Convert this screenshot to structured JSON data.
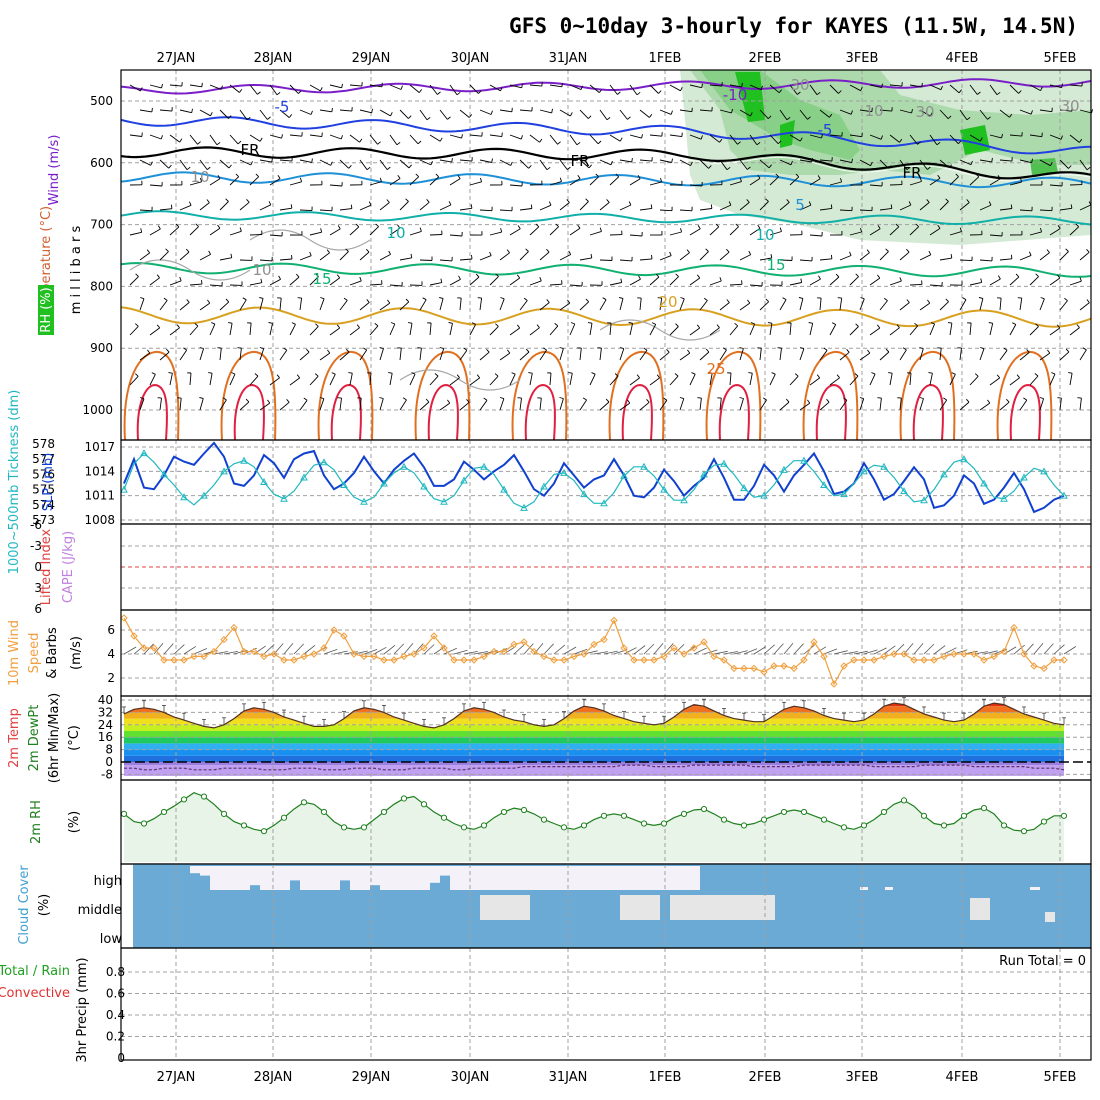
{
  "title": "GFS 0~10day 3-hourly for KAYES (11.5W, 14.5N)",
  "colors": {
    "frame": "#000000",
    "grid": "#a0a0a0",
    "barb": "#000000",
    "t_minus10": "#7a1fc8",
    "t_minus5": "#2040e0",
    "t_fr": "#000000",
    "t_5": "#1e90d8",
    "t_10": "#10b0a8",
    "t_15": "#10b070",
    "t_20": "#d8a020",
    "t_25": "#e07020",
    "t_30": "#e02040",
    "rh_light": "#d0e8d0",
    "rh_mid": "#88d088",
    "rh_dark": "#20c020",
    "slp": "#1040d0",
    "thick": "#20b8c0",
    "lifted": "#e04040",
    "wind10m": "#f0a040",
    "rh2m": "#208020",
    "rh2m_fill": "#e8f4e8",
    "cloud": "#6aaad4",
    "cloud_clear": "#f4f2f8",
    "cloud_gray": "#e6e6e6",
    "precip_total": "#20a020",
    "precip_conv": "#e03030"
  },
  "x_axis": {
    "dates": [
      "27JAN",
      "28JAN",
      "29JAN",
      "30JAN",
      "31JAN",
      "1FEB",
      "2FEB",
      "3FEB",
      "4FEB",
      "5FEB"
    ]
  },
  "panels": {
    "upper": {
      "ylabel_wind": "Wind (m/s)",
      "ylabel_temp": "Temperature (°C)",
      "ylabel_rh": "RH (%)",
      "ylabel_p": "m i l l i b a r s",
      "ticks": [
        "500",
        "600",
        "700",
        "800",
        "900",
        "1000"
      ],
      "contour_labels": [
        "-10",
        "-5",
        "-5",
        "-5",
        "FR",
        "FR",
        "FR",
        "10",
        "5",
        "5",
        "10",
        "10",
        "15",
        "15",
        "20",
        "25",
        "10",
        "10",
        "30",
        "30",
        "30"
      ]
    },
    "slp": {
      "ylabel_thick": "1000~500mb Tickness (dm)",
      "ylabel_slp": "SLP (mb)",
      "ticks_left": [
        "578",
        "577",
        "576",
        "575",
        "574",
        "573"
      ],
      "ticks_right": [
        "1017",
        "1014",
        "1011",
        "1008"
      ]
    },
    "cape": {
      "ylabel_li": "Lifted Index",
      "ylabel_cape": "CAPE (J/kg)",
      "ticks": [
        "-6",
        "-3",
        "0",
        "3",
        "6"
      ]
    },
    "wind10m": {
      "ylabel_a": "10m Wind",
      "ylabel_b": "Speed",
      "ylabel_c": "& Barbs",
      "ylabel_unit": "(m/s)",
      "ticks": [
        "6",
        "4",
        "2"
      ]
    },
    "temp2m": {
      "ylabel_a": "2m Temp",
      "ylabel_b": "2m DewPt",
      "ylabel_c": "(6hr Min/Max)",
      "ylabel_unit": "(°C)",
      "ticks": [
        "40",
        "32",
        "24",
        "16",
        "8",
        "0",
        "-8"
      ]
    },
    "rh2m": {
      "ylabel": "2m RH",
      "ylabel_unit": "(%)"
    },
    "cloud": {
      "ylabel": "Cloud Cover",
      "ylabel_unit": "(%)",
      "ticks": [
        "high",
        "middle",
        "low"
      ]
    },
    "precip": {
      "ylabel_a": "Total / Rain",
      "ylabel_b": "Convective",
      "ylabel_c": "3hr Precip (mm)",
      "ticks": [
        "0.8",
        "0.6",
        "0.4",
        "0.2",
        "0"
      ],
      "run_total": "Run Total = 0"
    }
  },
  "chart_data": {
    "type": "meteogram",
    "title": "GFS 0~10day 3-hourly for KAYES (11.5W, 14.5N)",
    "start_index_time": "26JAN 15Z",
    "step_hours": 3,
    "days": [
      "27JAN",
      "28JAN",
      "29JAN",
      "30JAN",
      "31JAN",
      "1FEB",
      "2FEB",
      "3FEB",
      "4FEB",
      "5FEB"
    ],
    "pressure_levels_mb": [
      500,
      600,
      700,
      800,
      900,
      1000
    ],
    "slp_mb": [
      1012.5,
      1015.5,
      1012.0,
      1011.8,
      1013.5,
      1015.8,
      1015.2,
      1014.8,
      1016.2,
      1017.5,
      1015.8,
      1012.5,
      1012.2,
      1013.5,
      1016.0,
      1015.0,
      1013.2,
      1015.5,
      1016.2,
      1016.5,
      1013.5,
      1011.8,
      1012.5,
      1013.8,
      1015.8,
      1014.0,
      1012.5,
      1014.2,
      1015.3,
      1016.2,
      1014.5,
      1012.2,
      1012.2,
      1013.0,
      1015.2,
      1014.2,
      1013.0,
      1014.0,
      1014.8,
      1016.0,
      1014.0,
      1011.8,
      1011.0,
      1012.5,
      1015.0,
      1013.5,
      1012.0,
      1013.0,
      1013.5,
      1015.5,
      1013.5,
      1011.0,
      1010.8,
      1012.0,
      1014.2,
      1012.8,
      1011.0,
      1012.2,
      1013.2,
      1015.5,
      1013.2,
      1010.5,
      1010.5,
      1012.2,
      1014.8,
      1013.5,
      1011.5,
      1013.5,
      1014.8,
      1016.2,
      1014.0,
      1011.2,
      1011.5,
      1012.5,
      1015.0,
      1013.0,
      1010.5,
      1011.2,
      1012.8,
      1014.5,
      1013.0,
      1009.5,
      1009.8,
      1011.0,
      1013.5,
      1012.5,
      1010.0,
      1010.5,
      1012.0,
      1013.8,
      1011.8,
      1009.0,
      1009.5,
      1010.5,
      1011.0
    ],
    "thickness_dm": [
      575.0,
      576.7,
      577.4,
      576.8,
      576.0,
      575.3,
      574.5,
      574.0,
      574.6,
      575.3,
      576.2,
      576.7,
      576.9,
      576.5,
      575.5,
      574.7,
      574.4,
      574.9,
      575.8,
      576.6,
      576.8,
      576.3,
      575.3,
      574.5,
      574.2,
      574.5,
      575.4,
      576.1,
      576.5,
      576.1,
      575.2,
      574.4,
      574.2,
      574.6,
      575.6,
      576.4,
      576.5,
      576.0,
      575.0,
      574.1,
      573.8,
      574.2,
      575.2,
      576.0,
      576.1,
      575.6,
      574.7,
      574.1,
      574.1,
      574.8,
      575.9,
      576.5,
      576.5,
      575.9,
      575.0,
      574.3,
      574.3,
      575.0,
      576.0,
      576.6,
      576.7,
      576.0,
      575.1,
      574.5,
      574.6,
      575.3,
      576.3,
      576.9,
      576.9,
      576.2,
      575.3,
      574.6,
      574.7,
      575.4,
      576.2,
      576.6,
      576.5,
      575.8,
      574.9,
      574.2,
      574.3,
      575.0,
      576.0,
      576.8,
      577.0,
      576.4,
      575.4,
      574.5,
      574.4,
      574.9,
      575.8,
      576.4,
      576.2,
      575.3,
      574.6
    ],
    "lifted_index": [
      0,
      0,
      0,
      0,
      0,
      0,
      0,
      0,
      0,
      0,
      0,
      0,
      0,
      0,
      0,
      0,
      0,
      0,
      0,
      0,
      0,
      0,
      0,
      0,
      0,
      0,
      0,
      0,
      0,
      0,
      0,
      0,
      0,
      0,
      0,
      0,
      0,
      0,
      0,
      0,
      0,
      0,
      0,
      0,
      0,
      0,
      0,
      0,
      0,
      0,
      0,
      0,
      0,
      0,
      0,
      0,
      0,
      0,
      0,
      0,
      0,
      0,
      0,
      0,
      0,
      0,
      0,
      0,
      0,
      0,
      0,
      0,
      0,
      0,
      0,
      0,
      0,
      0,
      0,
      0,
      0,
      0,
      0,
      0,
      0,
      0,
      0,
      0,
      0,
      0,
      0,
      0,
      0,
      0,
      0
    ],
    "wind10m_ms": [
      7.0,
      5.5,
      4.5,
      4.5,
      3.5,
      3.5,
      3.5,
      3.8,
      3.8,
      4.2,
      5.2,
      6.2,
      4.2,
      4.2,
      3.8,
      4.0,
      3.5,
      3.5,
      3.8,
      4.0,
      4.5,
      6.0,
      5.5,
      4.0,
      3.8,
      3.8,
      3.5,
      3.5,
      3.8,
      4.0,
      4.5,
      5.5,
      4.5,
      3.5,
      3.5,
      3.5,
      3.8,
      4.2,
      4.2,
      4.8,
      5.0,
      4.2,
      3.8,
      3.5,
      3.5,
      3.8,
      4.0,
      4.8,
      5.2,
      6.8,
      4.5,
      3.5,
      3.5,
      3.5,
      3.8,
      4.5,
      4.0,
      4.5,
      5.0,
      3.8,
      3.5,
      2.8,
      2.8,
      2.8,
      2.5,
      3.0,
      3.0,
      2.8,
      3.5,
      5.0,
      3.8,
      1.5,
      3.0,
      3.5,
      3.5,
      3.5,
      3.8,
      4.0,
      4.0,
      3.5,
      3.5,
      3.5,
      3.8,
      4.0,
      4.0,
      4.0,
      3.5,
      3.8,
      4.2,
      6.2,
      4.0,
      3.0,
      2.8,
      3.5,
      3.5
    ],
    "temp2m_c": [
      31,
      34,
      35,
      34,
      32,
      29,
      27,
      25,
      23,
      22,
      24,
      28,
      33,
      35,
      34,
      32,
      29,
      27,
      25,
      23,
      23,
      24,
      28,
      33,
      35,
      34,
      32,
      29,
      27,
      25,
      23,
      22,
      24,
      28,
      33,
      35,
      34,
      32,
      29,
      27,
      26,
      24,
      23,
      24,
      28,
      33,
      36,
      35,
      33,
      30,
      28,
      26,
      25,
      24,
      25,
      29,
      34,
      37,
      36,
      33,
      30,
      28,
      27,
      26,
      26,
      30,
      34,
      36,
      35,
      33,
      30,
      28,
      27,
      26,
      27,
      31,
      36,
      38,
      37,
      34,
      31,
      29,
      27,
      26,
      27,
      31,
      36,
      38,
      37,
      34,
      31,
      29,
      27,
      25,
      24
    ],
    "dewpt2m_c": [
      -4,
      -4,
      -5,
      -5,
      -4,
      -4,
      -4,
      -5,
      -5,
      -5,
      -4,
      -4,
      -4,
      -4,
      -5,
      -5,
      -5,
      -4,
      -4,
      -4,
      -5,
      -5,
      -5,
      -4,
      -4,
      -4,
      -5,
      -5,
      -5,
      -4,
      -4,
      -4,
      -4,
      -5,
      -5,
      -4,
      -4,
      -4,
      -4,
      -4,
      -3,
      -3,
      -3,
      -3,
      -3,
      -3,
      -3,
      -3,
      -3,
      -3,
      -2,
      -2,
      -2,
      -3,
      -3,
      -3,
      -3,
      -2,
      -2,
      -2,
      -2,
      -2,
      -2,
      -3,
      -3,
      -3,
      -3,
      -3,
      -2,
      -2,
      -2,
      -2,
      -2,
      -2,
      -2,
      -3,
      -3,
      -3,
      -3,
      -3,
      -2,
      -2,
      -2,
      -2,
      -2,
      -3,
      -3,
      -3,
      -3,
      -3,
      -3,
      -4,
      -4,
      -4,
      -5
    ],
    "rh2m_pct": [
      50,
      42,
      40,
      45,
      52,
      58,
      65,
      72,
      68,
      60,
      50,
      42,
      38,
      34,
      32,
      38,
      46,
      55,
      62,
      60,
      52,
      42,
      36,
      34,
      36,
      44,
      52,
      60,
      66,
      68,
      60,
      52,
      46,
      40,
      36,
      34,
      38,
      46,
      52,
      56,
      54,
      50,
      44,
      40,
      36,
      34,
      38,
      44,
      48,
      50,
      48,
      44,
      40,
      38,
      40,
      46,
      50,
      54,
      55,
      50,
      44,
      40,
      38,
      40,
      44,
      48,
      52,
      54,
      52,
      48,
      44,
      40,
      36,
      34,
      38,
      44,
      52,
      60,
      64,
      58,
      48,
      40,
      38,
      40,
      48,
      54,
      56,
      50,
      38,
      33,
      32,
      34,
      42,
      48,
      48
    ],
    "cloud_high_pct": [
      0,
      0,
      0,
      0,
      0,
      0,
      30,
      40,
      100,
      100,
      100,
      100,
      80,
      100,
      100,
      100,
      60,
      100,
      100,
      100,
      100,
      60,
      100,
      100,
      80,
      100,
      100,
      100,
      100,
      100,
      70,
      40,
      100,
      100,
      100,
      100,
      100,
      100,
      100,
      100,
      100,
      100,
      100,
      100,
      100,
      100,
      100,
      100,
      100,
      100,
      100,
      100,
      100,
      100,
      100,
      100,
      100,
      0,
      0,
      0,
      0,
      0,
      0,
      0,
      0,
      0,
      0,
      0,
      0,
      0,
      0,
      0,
      0,
      0,
      0,
      0,
      0,
      0,
      0,
      0,
      0,
      0,
      0,
      0,
      0,
      0,
      0,
      0,
      0,
      0,
      0,
      0,
      0,
      0,
      0
    ],
    "precip_total_mm": [
      0,
      0,
      0,
      0,
      0,
      0,
      0,
      0,
      0,
      0,
      0,
      0,
      0,
      0,
      0,
      0,
      0,
      0,
      0,
      0,
      0,
      0,
      0,
      0,
      0,
      0,
      0,
      0,
      0,
      0,
      0,
      0,
      0,
      0,
      0,
      0,
      0,
      0,
      0,
      0,
      0,
      0,
      0,
      0,
      0,
      0,
      0,
      0,
      0,
      0,
      0,
      0,
      0,
      0,
      0,
      0,
      0,
      0,
      0,
      0,
      0,
      0,
      0,
      0,
      0,
      0,
      0,
      0,
      0,
      0,
      0,
      0,
      0,
      0,
      0,
      0,
      0,
      0,
      0,
      0,
      0,
      0,
      0,
      0,
      0,
      0,
      0,
      0,
      0,
      0,
      0,
      0,
      0,
      0,
      0
    ],
    "precip_run_total_mm": 0,
    "ylim": {
      "slp_mb": [
        1007,
        1018
      ],
      "thickness_dm": [
        572.7,
        578.3
      ],
      "lifted_index": [
        -6,
        6
      ],
      "wind10m_ms": [
        1,
        7.5
      ],
      "temp2m_c": [
        -9,
        41
      ],
      "rh2m_pct": [
        0,
        80
      ],
      "precip_mm": [
        0,
        1
      ]
    }
  }
}
